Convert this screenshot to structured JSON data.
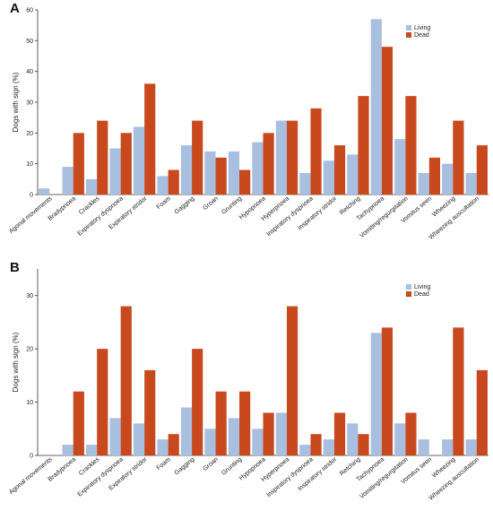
{
  "chart_data": [
    {
      "type": "bar",
      "panel_label": "A",
      "ylabel": "Dogs with sign (%)",
      "ylim": [
        0,
        60
      ],
      "yticks": [
        0,
        10,
        20,
        30,
        40,
        50,
        60
      ],
      "legend_position": "top-right",
      "categories": [
        "Agonal movements",
        "Bradypnoea",
        "Crackles",
        "Expiratory dyspnoea",
        "Expiratory stridor",
        "Foam",
        "Gagging",
        "Groan",
        "Grunting",
        "Hypopnoea",
        "Hyperpnoea",
        "Inspiratory dyspnoea",
        "Inspiratory stridor",
        "Retching",
        "Tachypnoea",
        "Vomiting/regurgitation",
        "Vomitus seen",
        "Wheezing",
        "Wheezing auscultation"
      ],
      "series": [
        {
          "name": "Living",
          "color": "#a8bfe0",
          "values": [
            2,
            9,
            5,
            15,
            22,
            6,
            16,
            14,
            14,
            17,
            24,
            7,
            11,
            13,
            57,
            18,
            7,
            10,
            7
          ]
        },
        {
          "name": "Dead",
          "color": "#c9491f",
          "values": [
            0,
            20,
            24,
            20,
            36,
            8,
            24,
            12,
            8,
            20,
            24,
            28,
            16,
            32,
            48,
            32,
            12,
            24,
            16
          ]
        }
      ]
    },
    {
      "type": "bar",
      "panel_label": "B",
      "ylabel": "Dogs with sign (%)",
      "ylim": [
        0,
        35
      ],
      "yticks": [
        0,
        10,
        20,
        30
      ],
      "legend_position": "top-right",
      "categories": [
        "Agonal movements",
        "Bradypnoea",
        "Crackles",
        "Expiratory dyspnoea",
        "Expiratory stridor",
        "Foam",
        "Gagging",
        "Groan",
        "Grunting",
        "Hypopnoea",
        "Hyperpnoea",
        "Inspiratory dyspnoea",
        "Inspiratory stridor",
        "Retching",
        "Tachypnoea",
        "Vomiting/regurgitation",
        "Vomitus seen",
        "Wheezing",
        "Wheezing auscultation"
      ],
      "series": [
        {
          "name": "Living",
          "color": "#a8bfe0",
          "values": [
            0,
            2,
            2,
            7,
            6,
            3,
            9,
            5,
            7,
            5,
            8,
            2,
            3,
            6,
            23,
            6,
            3,
            3,
            3
          ]
        },
        {
          "name": "Dead",
          "color": "#c9491f",
          "values": [
            0,
            12,
            20,
            28,
            16,
            4,
            20,
            12,
            12,
            8,
            28,
            4,
            8,
            4,
            24,
            8,
            0,
            24,
            16
          ]
        }
      ]
    }
  ]
}
